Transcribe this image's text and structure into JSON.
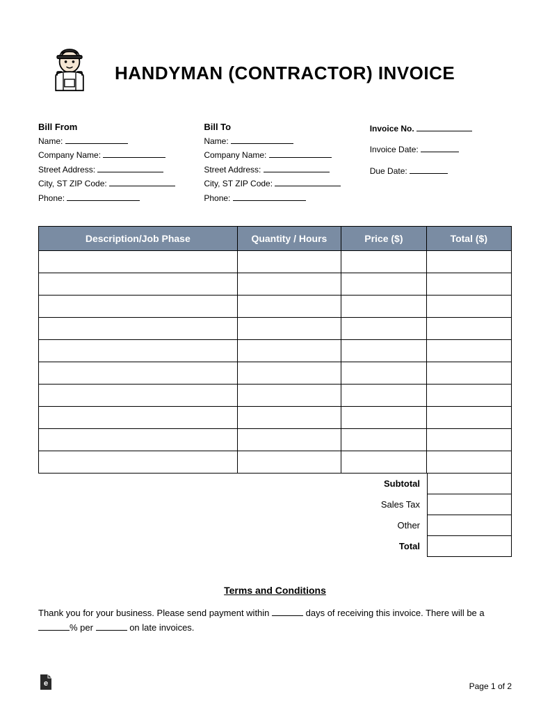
{
  "title": "HANDYMAN (CONTRACTOR) INVOICE",
  "bill_from": {
    "heading": "Bill From",
    "fields": [
      "Name:",
      "Company Name:",
      "Street Address:",
      "City, ST ZIP Code:",
      "Phone:"
    ]
  },
  "bill_to": {
    "heading": "Bill To",
    "fields": [
      "Name:",
      "Company Name:",
      "Street Address:",
      "City, ST ZIP Code:",
      "Phone:"
    ]
  },
  "invoice_meta": {
    "number_label": "Invoice No.",
    "date_label": "Invoice Date:",
    "due_label": "Due Date:"
  },
  "table": {
    "columns": [
      "Description/Job Phase",
      "Quantity / Hours",
      "Price ($)",
      "Total ($)"
    ],
    "row_count": 10,
    "header_bg": "#7a8ca3",
    "header_text_color": "#ffffff",
    "border_color": "#000000"
  },
  "totals": {
    "rows": [
      {
        "label": "Subtotal",
        "bold": true
      },
      {
        "label": "Sales Tax",
        "bold": false
      },
      {
        "label": "Other",
        "bold": false
      },
      {
        "label": "Total",
        "bold": true
      }
    ]
  },
  "terms": {
    "heading": "Terms and Conditions",
    "text_1": "Thank you for your business. Please send payment within ",
    "text_2": " days of receiving this invoice. There will be a ",
    "text_3": "% per ",
    "text_4": " on late invoices."
  },
  "footer": {
    "page": "Page 1 of 2"
  },
  "blank_widths": {
    "name": 90,
    "company": 90,
    "street": 95,
    "city": 95,
    "phone": 105,
    "invoice_no": 80,
    "invoice_date": 55,
    "due_date": 55,
    "terms_days": 45,
    "terms_pct": 45,
    "terms_per": 45
  }
}
